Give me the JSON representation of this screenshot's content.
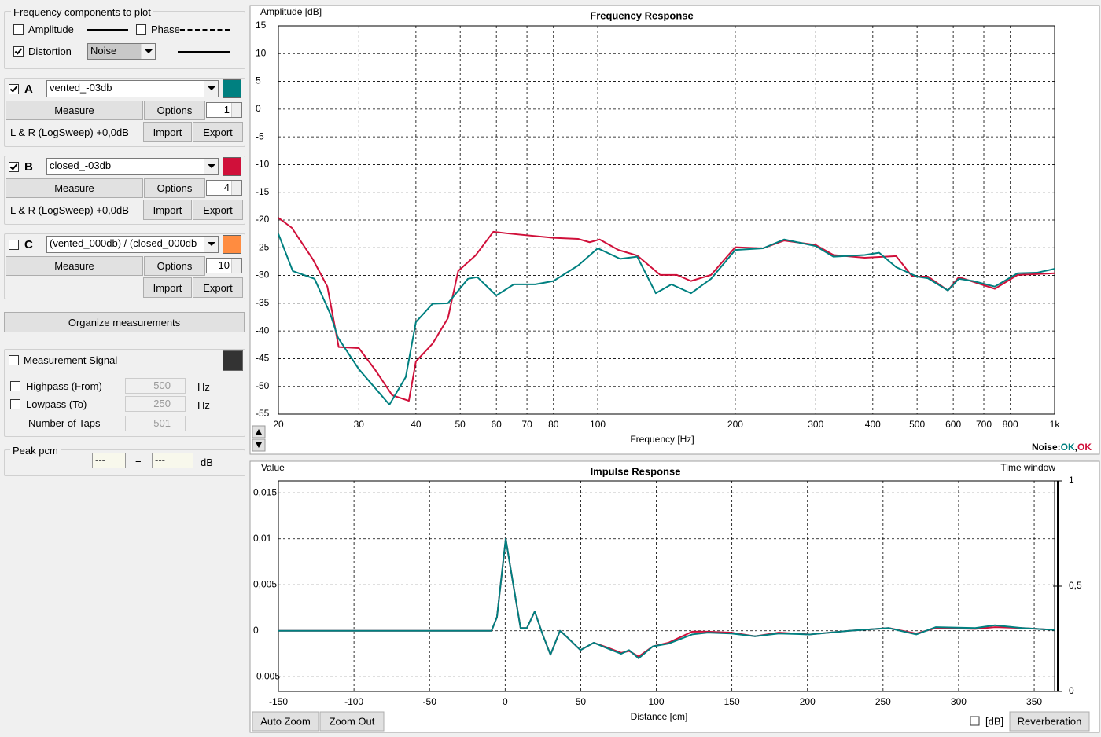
{
  "panel": {
    "components": {
      "title": "Frequency components to plot",
      "amplitude": {
        "label": "Amplitude",
        "checked": false
      },
      "phase": {
        "label": "Phase",
        "checked": false
      },
      "distortion": {
        "label": "Distortion",
        "checked": true
      },
      "noise_select": "Noise"
    },
    "measurements": [
      {
        "id": "A",
        "checked": true,
        "name": "vented_-03db",
        "color": "#008080",
        "measure": "Measure",
        "options": "Options",
        "count": 1,
        "info": "L & R (LogSweep) +0,0dB",
        "import": "Import",
        "export": "Export"
      },
      {
        "id": "B",
        "checked": true,
        "name": "closed_-03db",
        "color": "#d0103a",
        "measure": "Measure",
        "options": "Options",
        "count": 4,
        "info": "L & R (LogSweep) +0,0dB",
        "import": "Import",
        "export": "Export"
      },
      {
        "id": "C",
        "checked": false,
        "name": "(vented_000db) / (closed_000db",
        "color": "#ff8c40",
        "measure": "Measure",
        "options": "Options",
        "count": 10,
        "import": "Import",
        "export": "Export"
      }
    ],
    "organize": "Organize measurements",
    "signal": {
      "label": "Measurement Signal",
      "checked": false,
      "color": "#333333",
      "highpass": {
        "label": "Highpass (From)",
        "checked": false,
        "value": 500,
        "unit": "Hz"
      },
      "lowpass": {
        "label": "Lowpass (To)",
        "checked": false,
        "value": 250,
        "unit": "Hz"
      },
      "taps": {
        "label": "Number of Taps",
        "value": 501
      }
    },
    "peak": {
      "title": "Peak pcm",
      "left": "---",
      "eq": "=",
      "right": "---",
      "unit": "dB"
    }
  },
  "chart_data": [
    {
      "type": "line",
      "title": "Frequency Response",
      "y_label": "Amplitude [dB]",
      "x_label": "Frequency [Hz]",
      "x_log": true,
      "grid": true,
      "xlim": [
        20,
        1000
      ],
      "ylim": [
        -55,
        15
      ],
      "xticks": [
        20,
        30,
        40,
        50,
        60,
        70,
        80,
        100,
        200,
        300,
        400,
        500,
        600,
        700,
        800,
        {
          "value": 1000,
          "label": "1k"
        }
      ],
      "yticks": [
        15,
        10,
        5,
        0,
        -5,
        -10,
        -15,
        -20,
        -25,
        -30,
        -35,
        -40,
        -45,
        -50,
        -55
      ],
      "status": {
        "label": "Noise:",
        "a": "OK",
        "sep": ",",
        "b": "OK"
      },
      "series": [
        {
          "color": "#d0103a",
          "x": [
            20,
            21.4,
            23.8,
            25.6,
            27.1,
            30,
            32.5,
            35.5,
            38.6,
            40,
            43.5,
            47,
            49.5,
            54,
            59.1,
            63.4,
            80,
            90.6,
            96,
            101,
            111,
            122,
            137,
            149,
            160,
            177,
            200,
            230,
            256,
            300,
            328,
            384,
            450,
            488,
            528,
            584,
            617,
            740,
            830,
            1000
          ],
          "values": [
            -19.6,
            -21.4,
            -27.1,
            -32,
            -42.9,
            -43.1,
            -46.9,
            -51.6,
            -52.6,
            -45.5,
            -42.3,
            -37.7,
            -29.2,
            -26.4,
            -22.1,
            -22.4,
            -23.2,
            -23.4,
            -24,
            -23.5,
            -25.4,
            -26.4,
            -29.9,
            -29.9,
            -31,
            -29.9,
            -24.9,
            -25.1,
            -23.7,
            -24.5,
            -26.3,
            -26.8,
            -26.5,
            -30.2,
            -30.2,
            -32.7,
            -30.3,
            -32.4,
            -29.9,
            -29.6
          ]
        },
        {
          "color": "#008080",
          "x": [
            20,
            21.5,
            24,
            26,
            27,
            30,
            35,
            38,
            40,
            43.5,
            47,
            52,
            54.5,
            60,
            65.5,
            73,
            80,
            90.6,
            100,
            112,
            122,
            134,
            145,
            160,
            177,
            200,
            230,
            256,
            300,
            328,
            384,
            413,
            450,
            500,
            528,
            584,
            617,
            663,
            740,
            830,
            915,
            1000
          ],
          "values": [
            -22.5,
            -29.2,
            -30.6,
            -37,
            -41.2,
            -46.9,
            -53.3,
            -48.3,
            -38.4,
            -35.1,
            -35,
            -30.6,
            -30.3,
            -33.6,
            -31.6,
            -31.6,
            -31,
            -28.2,
            -25.1,
            -27,
            -26.6,
            -33.2,
            -31.6,
            -33.2,
            -30.6,
            -25.4,
            -25.1,
            -23.5,
            -24.7,
            -26.6,
            -26.3,
            -25.9,
            -28.5,
            -30.2,
            -30.5,
            -32.7,
            -30.6,
            -31,
            -32,
            -29.6,
            -29.5,
            -28.8
          ]
        }
      ]
    },
    {
      "type": "line",
      "title": "Impulse Response",
      "y_label": "Value",
      "y2_label": "Time window",
      "x_label": "Distance [cm]",
      "grid": true,
      "xlim": [
        -150,
        363.5
      ],
      "ylim": [
        -0.0066,
        0.0163
      ],
      "y2lim": [
        0,
        1
      ],
      "xticks": [
        -150,
        -100,
        -50,
        0,
        50,
        100,
        150,
        200,
        250,
        300,
        350
      ],
      "yticks": [
        {
          "value": -0.005,
          "label": "-0,005"
        },
        0,
        {
          "value": 0.005,
          "label": "0,005"
        },
        {
          "value": 0.01,
          "label": "0,01"
        },
        {
          "value": 0.015,
          "label": "0,015"
        }
      ],
      "y2ticks": [
        0,
        {
          "value": 0.5,
          "label": "0,5"
        },
        1
      ],
      "series": [
        {
          "color": "#d0103a",
          "x": [
            -150,
            -9,
            -5.4,
            0.4,
            5,
            10.2,
            14.4,
            19.6,
            24.8,
            30,
            36.3,
            40.4,
            49.8,
            58.6,
            69,
            76.8,
            82,
            88.3,
            97.7,
            108,
            123.7,
            134,
            149.7,
            165.3,
            181,
            201.7,
            227.7,
            253.7,
            272,
            285,
            311,
            324,
            342,
            363.5
          ],
          "values": [
            0,
            0,
            0.0015,
            0.01,
            0.0054,
            0.0003,
            0.0003,
            0.0021,
            -0.0004,
            -0.0026,
            0,
            -0.0006,
            -0.0021,
            -0.0013,
            -0.0019,
            -0.0024,
            -0.0022,
            -0.0028,
            -0.0017,
            -0.0013,
            -0.0001,
            -0.0001,
            -0.0002,
            -0.0006,
            -0.0002,
            -0.0004,
            0,
            0.0003,
            -0.0003,
            0.0003,
            0.0002,
            0.0004,
            0.0003,
            0.0001
          ]
        },
        {
          "color": "#008080",
          "x": [
            -150,
            -9,
            -5.4,
            0.4,
            5,
            10.2,
            14.4,
            19.6,
            24.8,
            30,
            36.3,
            40.4,
            49.8,
            58.6,
            69,
            76.8,
            82,
            88.3,
            97.7,
            108,
            123.7,
            134,
            149.7,
            165.3,
            181,
            201.7,
            227.7,
            253.7,
            272,
            285,
            311,
            324,
            342,
            363.5
          ],
          "values": [
            0,
            0,
            0.0015,
            0.01,
            0.0054,
            0.0003,
            0.0003,
            0.0021,
            -0.0004,
            -0.0026,
            0,
            -0.0006,
            -0.0021,
            -0.0013,
            -0.002,
            -0.0025,
            -0.0021,
            -0.003,
            -0.0017,
            -0.0014,
            -0.0004,
            -0.0002,
            -0.0003,
            -0.0006,
            -0.0003,
            -0.0004,
            0,
            0.0003,
            -0.0004,
            0.0004,
            0.0003,
            0.0006,
            0.0003,
            0.0001
          ]
        }
      ]
    }
  ],
  "controls": {
    "auto_zoom": "Auto Zoom",
    "zoom_out": "Zoom Out",
    "db": {
      "label": "[dB]",
      "checked": false
    },
    "reverberation": "Reverberation"
  }
}
